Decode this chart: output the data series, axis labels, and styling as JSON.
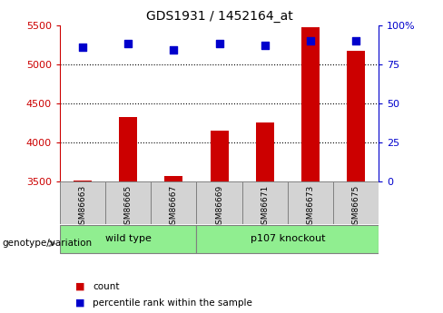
{
  "title": "GDS1931 / 1452164_at",
  "samples": [
    "GSM86663",
    "GSM86665",
    "GSM86667",
    "GSM86669",
    "GSM86671",
    "GSM86673",
    "GSM86675"
  ],
  "count_values": [
    3510,
    4320,
    3570,
    4150,
    4260,
    5470,
    5170
  ],
  "percentile_values": [
    86,
    88,
    84,
    88,
    87,
    90,
    90
  ],
  "ylim_left": [
    3500,
    5500
  ],
  "ylim_right": [
    0,
    100
  ],
  "yticks_left": [
    3500,
    4000,
    4500,
    5000,
    5500
  ],
  "yticks_right": [
    0,
    25,
    50,
    75,
    100
  ],
  "ytick_labels_right": [
    "0",
    "25",
    "50",
    "75",
    "100%"
  ],
  "group_defs": [
    {
      "label": "wild type",
      "start": 0,
      "end": 2,
      "color": "#90EE90"
    },
    {
      "label": "p107 knockout",
      "start": 3,
      "end": 6,
      "color": "#90EE90"
    }
  ],
  "bar_color": "#cc0000",
  "scatter_color": "#0000cc",
  "left_axis_color": "#cc0000",
  "right_axis_color": "#0000cc",
  "grid_color": "black",
  "background_color": "white",
  "plot_bg_color": "white",
  "legend_count_color": "#cc0000",
  "legend_pct_color": "#0000cc",
  "sample_box_color": "#d3d3d3"
}
